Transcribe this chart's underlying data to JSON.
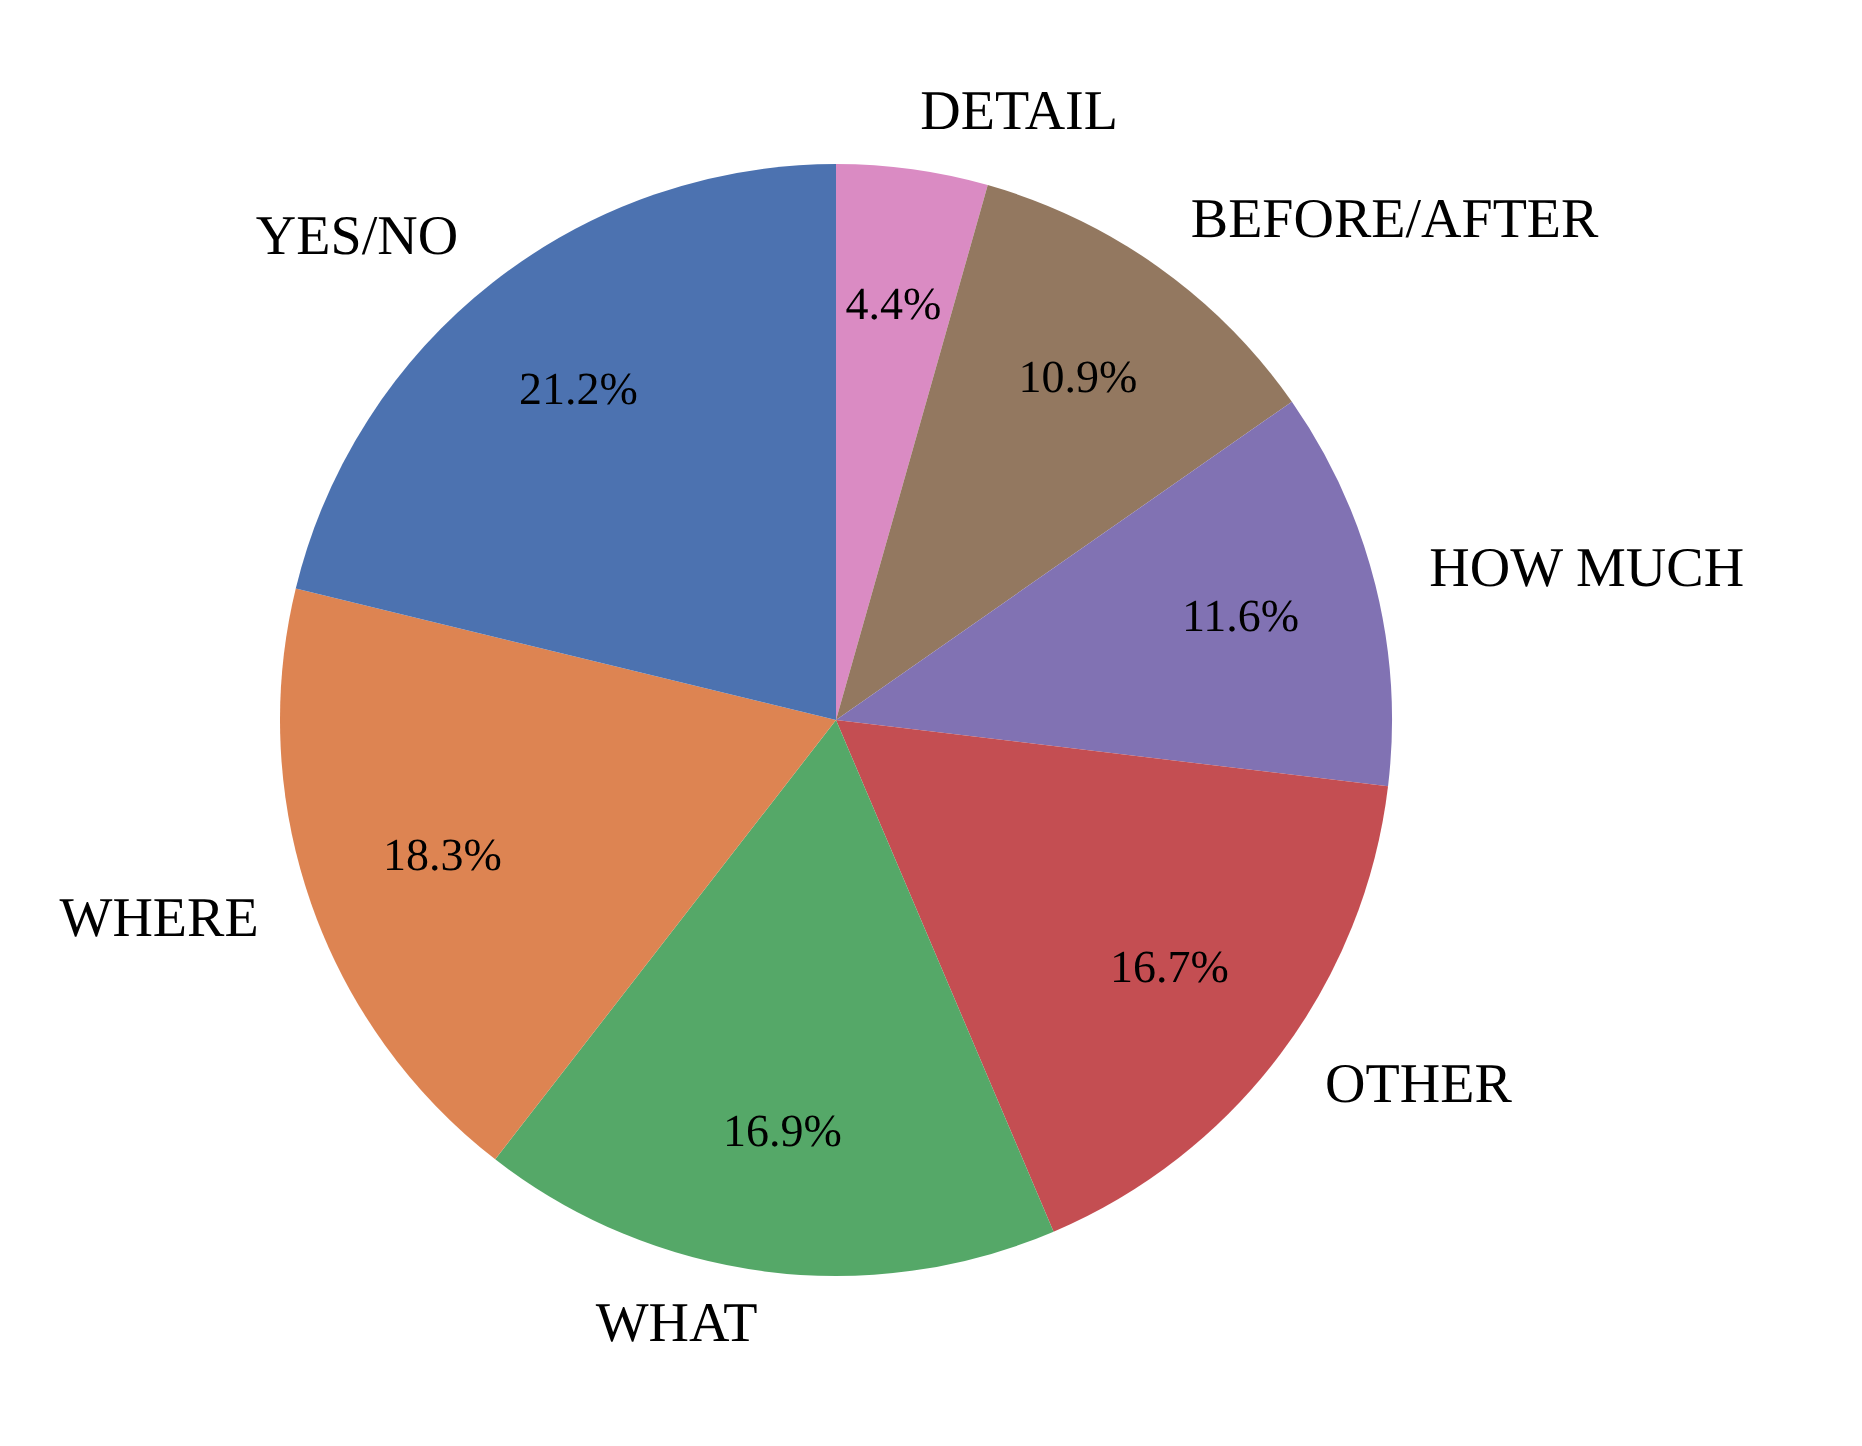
{
  "chart_data": {
    "type": "pie",
    "categories": [
      "DETAIL",
      "BEFORE/AFTER",
      "HOW MUCH",
      "OTHER",
      "WHAT",
      "WHERE",
      "YES/NO"
    ],
    "values": [
      4.4,
      10.9,
      11.6,
      16.7,
      16.9,
      18.3,
      21.2
    ],
    "colors": [
      "#da8bc3",
      "#937860",
      "#8172b3",
      "#c44e52",
      "#55a868",
      "#dd8452",
      "#4c72b0"
    ],
    "value_labels": [
      "4.4%",
      "10.9%",
      "11.6%",
      "16.7%",
      "16.9%",
      "18.3%",
      "21.2%"
    ],
    "legend": false
  }
}
